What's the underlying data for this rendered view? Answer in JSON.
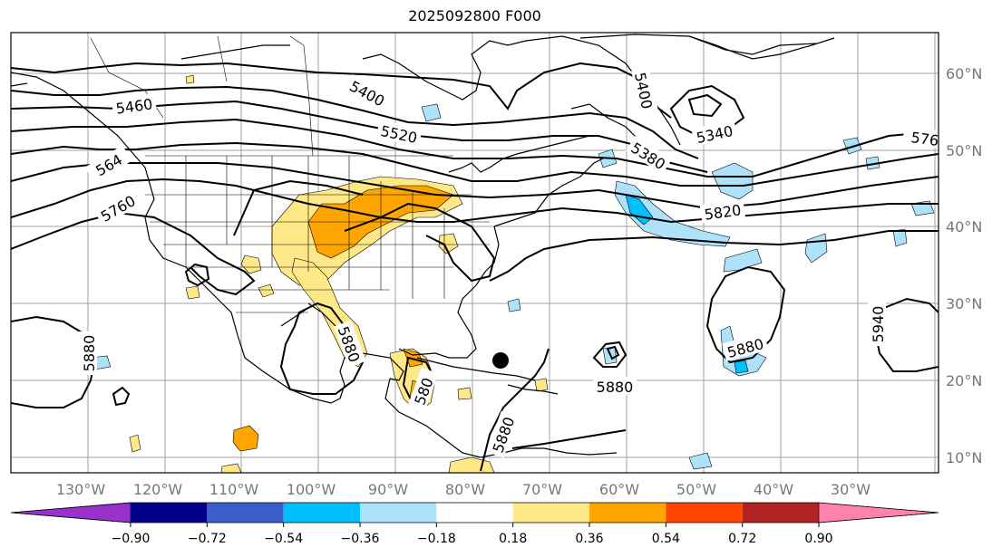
{
  "title": "2025092800 F000",
  "lat_labels": [
    "60°N",
    "50°N",
    "40°N",
    "30°N",
    "20°N",
    "10°N"
  ],
  "lon_labels": [
    "130°W",
    "120°W",
    "110°W",
    "100°W",
    "90°W",
    "80°W",
    "70°W",
    "60°W",
    "50°W",
    "40°W",
    "30°W"
  ],
  "contour_labels": [
    {
      "text": "5460",
      "rot": -8
    },
    {
      "text": "5400",
      "rot": 28
    },
    {
      "text": "5520",
      "rot": 12
    },
    {
      "text": "5400",
      "rot": 78
    },
    {
      "text": "5340",
      "rot": -12
    },
    {
      "text": "5380",
      "rot": 32
    },
    {
      "text": "576",
      "rot": 8
    },
    {
      "text": "564",
      "rot": -30
    },
    {
      "text": "5760",
      "rot": -30
    },
    {
      "text": "5820",
      "rot": -8
    },
    {
      "text": "5880",
      "rot": 70
    },
    {
      "text": "5880",
      "rot": -90
    },
    {
      "text": "5880",
      "rot": 0
    },
    {
      "text": "5880",
      "rot": -15
    },
    {
      "text": "5880",
      "rot": -70
    },
    {
      "text": "5940",
      "rot": -90
    },
    {
      "text": "580",
      "rot": -70
    }
  ],
  "colorbar": {
    "colors": [
      "#9932cc",
      "#00008b",
      "#3a5fcd",
      "#00bfff",
      "#aee1fa",
      "#ffffff",
      "#ffe888",
      "#ffa500",
      "#ff4500",
      "#b22222",
      "#ff82ab"
    ],
    "ticks": [
      "−0.90",
      "−0.72",
      "−0.54",
      "−0.36",
      "−0.18",
      "0.18",
      "0.36",
      "0.54",
      "0.72",
      "0.90"
    ]
  },
  "shading_colors": {
    "light_yellow": "#ffe888",
    "orange": "#ffa500",
    "light_blue": "#aee1fa",
    "blue": "#00bfff"
  }
}
